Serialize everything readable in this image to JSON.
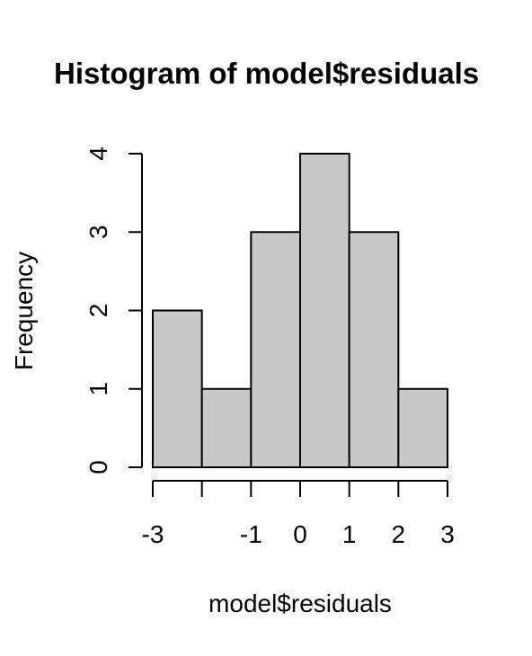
{
  "chart_data": {
    "type": "bar",
    "title": "Histogram of model$residuals",
    "xlabel": "model$residuals",
    "ylabel": "Frequency",
    "bins": [
      {
        "from": -3,
        "to": -2,
        "count": 2
      },
      {
        "from": -2,
        "to": -1,
        "count": 1
      },
      {
        "from": -1,
        "to": 0,
        "count": 3
      },
      {
        "from": 0,
        "to": 1,
        "count": 4
      },
      {
        "from": 1,
        "to": 2,
        "count": 3
      },
      {
        "from": 2,
        "to": 3,
        "count": 1
      }
    ],
    "xlim": [
      -3,
      3
    ],
    "ylim": [
      0,
      4
    ],
    "x_ticks": [
      -3,
      -2,
      -1,
      0,
      1,
      2,
      3
    ],
    "x_tick_labels": [
      "-3",
      "",
      "-1",
      "0",
      "1",
      "2",
      "3"
    ],
    "y_ticks": [
      0,
      1,
      2,
      3,
      4
    ],
    "y_tick_labels": [
      "0",
      "1",
      "2",
      "3",
      "4"
    ],
    "bar_fill": "#c8c8c8",
    "bar_stroke": "#000000",
    "grid": false
  }
}
